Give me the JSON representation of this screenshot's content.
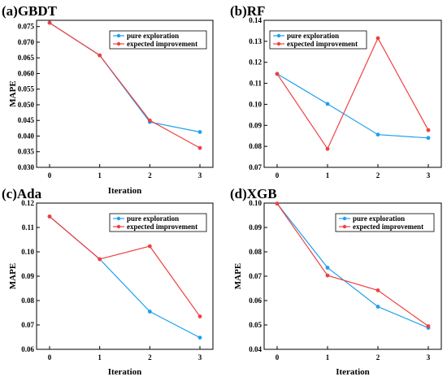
{
  "chart_data": [
    {
      "type": "line",
      "title": "(a)GBDT",
      "xlabel": "Iteration",
      "ylabel": "MAPE",
      "x": [
        0,
        1,
        2,
        3
      ],
      "ylim": [
        0.03,
        0.077
      ],
      "yticks": [
        "0.030",
        "0.035",
        "0.040",
        "0.045",
        "0.050",
        "0.055",
        "0.060",
        "0.065",
        "0.070",
        "0.075"
      ],
      "legend_position": "top-right",
      "series": [
        {
          "name": "pure exploration",
          "color": "#1ea0f0",
          "values": [
            0.0762,
            0.0658,
            0.0445,
            0.0413
          ]
        },
        {
          "name": "expected improvement",
          "color": "#f04040",
          "values": [
            0.0762,
            0.0658,
            0.045,
            0.0362
          ]
        }
      ]
    },
    {
      "type": "line",
      "title": "(b)RF",
      "xlabel": "",
      "ylabel": "",
      "x": [
        0,
        1,
        2,
        3
      ],
      "ylim": [
        0.07,
        0.14
      ],
      "yticks": [
        "0.07",
        "0.08",
        "0.09",
        "0.10",
        "0.11",
        "0.12",
        "0.13",
        "0.14"
      ],
      "legend_position": "top-left",
      "series": [
        {
          "name": "pure exploration",
          "color": "#1ea0f0",
          "values": [
            0.1145,
            0.1002,
            0.0856,
            0.084
          ]
        },
        {
          "name": "expected improvement",
          "color": "#f04040",
          "values": [
            0.1145,
            0.0788,
            0.1315,
            0.0877
          ]
        }
      ]
    },
    {
      "type": "line",
      "title": "(c)Ada",
      "xlabel": "Iteration",
      "ylabel": "MAPE",
      "x": [
        0,
        1,
        2,
        3
      ],
      "ylim": [
        0.06,
        0.12
      ],
      "yticks": [
        "0.06",
        "0.07",
        "0.08",
        "0.09",
        "0.10",
        "0.11",
        "0.12"
      ],
      "legend_position": "top-right",
      "series": [
        {
          "name": "pure exploration",
          "color": "#1ea0f0",
          "values": [
            0.1145,
            0.097,
            0.0755,
            0.0648
          ]
        },
        {
          "name": "expected improvement",
          "color": "#f04040",
          "values": [
            0.1145,
            0.097,
            0.1023,
            0.0735
          ]
        }
      ]
    },
    {
      "type": "line",
      "title": "(d)XGB",
      "xlabel": "Iteration",
      "ylabel": "MAPE",
      "x": [
        0,
        1,
        2,
        3
      ],
      "ylim": [
        0.04,
        0.1
      ],
      "yticks": [
        "0.04",
        "0.05",
        "0.06",
        "0.07",
        "0.08",
        "0.09",
        "0.10"
      ],
      "legend_position": "top-right",
      "series": [
        {
          "name": "pure exploration",
          "color": "#1ea0f0",
          "values": [
            0.0998,
            0.0735,
            0.0575,
            0.0488
          ]
        },
        {
          "name": "expected improvement",
          "color": "#f04040",
          "values": [
            0.0998,
            0.0703,
            0.0642,
            0.0495
          ]
        }
      ]
    }
  ]
}
